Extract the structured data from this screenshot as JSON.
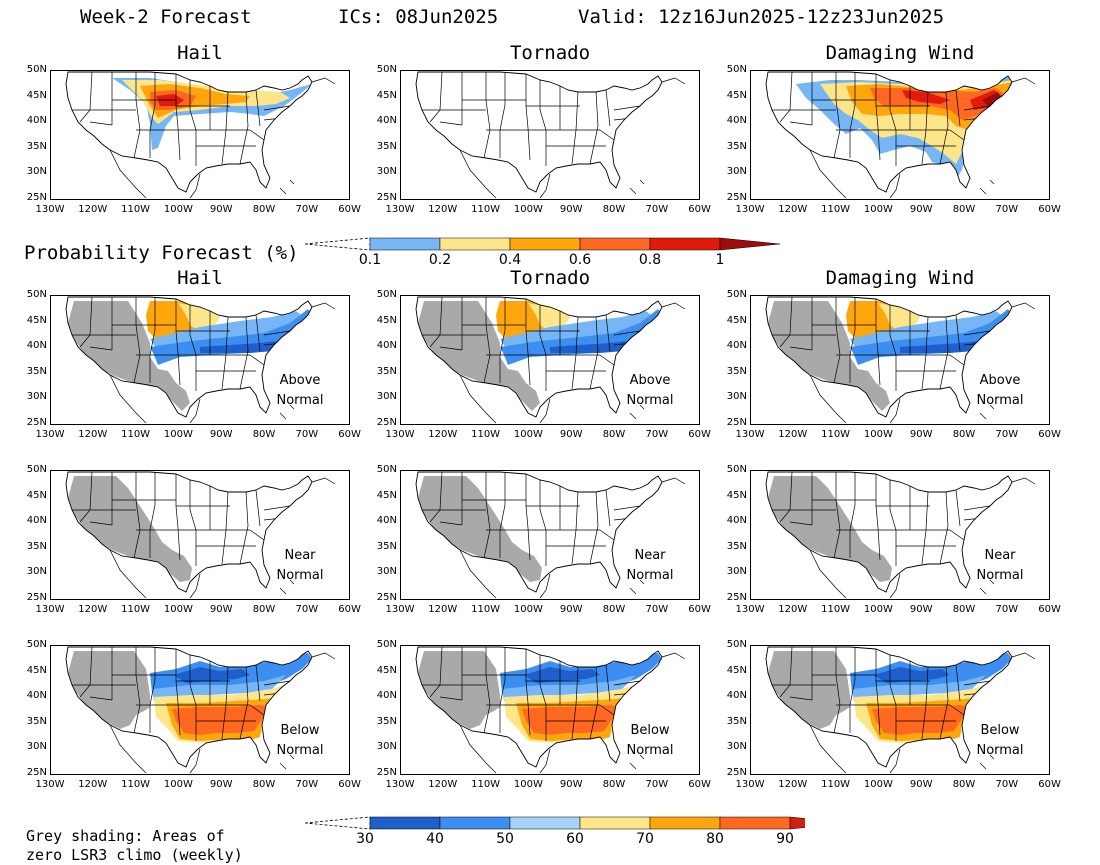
{
  "header": {
    "title": "Week-2 Forecast",
    "ics": "ICs: 08Jun2025",
    "valid": "Valid: 12z16Jun2025-12z23Jun2025"
  },
  "columns": [
    "Hail",
    "Tornado",
    "Damaging Wind"
  ],
  "rows": [
    {
      "type": "probability",
      "panels": [
        {
          "title": "Hail"
        },
        {
          "title": "Tornado"
        },
        {
          "title": "Damaging Wind"
        }
      ]
    },
    {
      "type": "anomaly",
      "category": [
        "Above",
        "Normal"
      ],
      "panels": [
        {
          "title": "Hail"
        },
        {
          "title": "Tornado"
        },
        {
          "title": "Damaging Wind"
        }
      ]
    },
    {
      "type": "anomaly",
      "category": [
        "Near",
        "Normal"
      ],
      "panels": [
        {
          "title": ""
        },
        {
          "title": ""
        },
        {
          "title": ""
        }
      ]
    },
    {
      "type": "anomaly",
      "category": [
        "Below",
        "Normal"
      ],
      "panels": [
        {
          "title": ""
        },
        {
          "title": ""
        },
        {
          "title": ""
        }
      ]
    }
  ],
  "lat_labels": [
    "50N",
    "45N",
    "40N",
    "35N",
    "30N",
    "25N"
  ],
  "lon_labels": [
    "130W",
    "120W",
    "110W",
    "100W",
    "90W",
    "80W",
    "70W",
    "60W"
  ],
  "prob_legend": {
    "title": "Probability Forecast (%)",
    "labels": [
      "0.1",
      "0.2",
      "0.4",
      "0.6",
      "0.8",
      "1"
    ],
    "colors": [
      "#76b6f6",
      "#fde68a",
      "#fea60c",
      "#fe6820",
      "#e11a0c",
      "#9e0c0c"
    ]
  },
  "pct_legend": {
    "labels": [
      "30",
      "40",
      "50",
      "60",
      "70",
      "80",
      "90"
    ],
    "colors": [
      "#1e5fcc",
      "#3c8ef0",
      "#a8d2fa",
      "#fde68a",
      "#fea60c",
      "#fe6820",
      "#d2200c"
    ]
  },
  "footnote": [
    "Grey shading: Areas of",
    "zero LSR3 climo (weekly)"
  ],
  "colors": {
    "grey": "#a9a9a9",
    "light_blue": "#76b6f6",
    "yellow": "#fde68a",
    "orange": "#fea60c",
    "dark_orange": "#fe6820",
    "red": "#e11a0c",
    "dark_red": "#9e0c0c",
    "blue30": "#1e5fcc",
    "blue40": "#3c8ef0"
  }
}
